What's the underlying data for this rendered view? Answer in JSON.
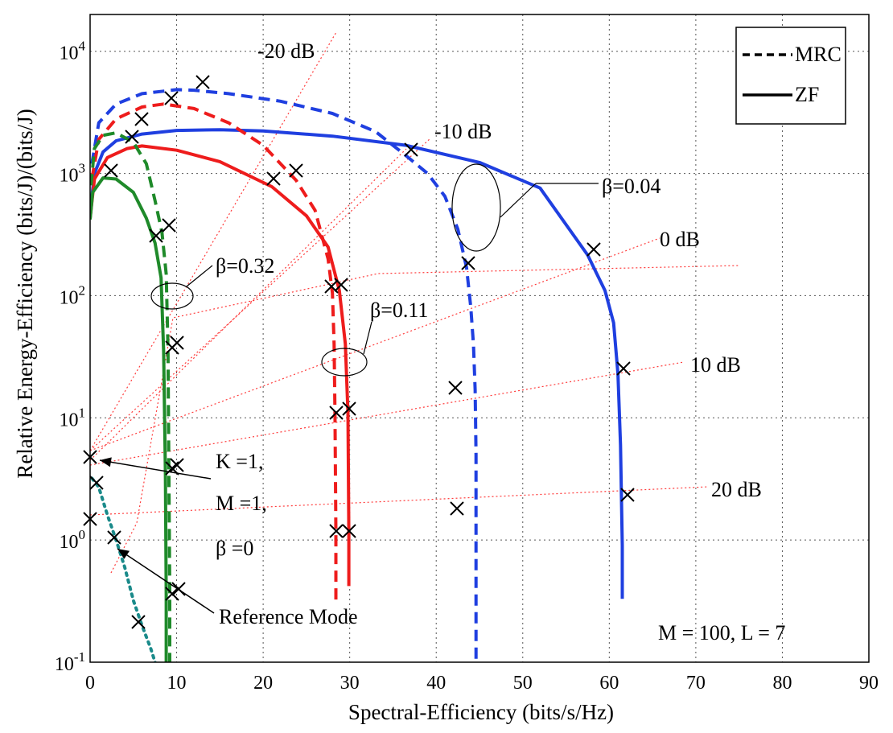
{
  "chart_data": {
    "type": "line",
    "title": "",
    "xlabel": "Spectral-Efficiency (bits/s/Hz)",
    "ylabel": "Relative Energy-Efficiency (bits/J)/(bits/J)",
    "xlim": [
      0,
      90
    ],
    "ylim": [
      0.1,
      20000
    ],
    "yscale": "log",
    "grid": true,
    "x_ticks": [
      "0",
      "10",
      "20",
      "30",
      "40",
      "50",
      "60",
      "70",
      "80",
      "90"
    ],
    "y_ticks": [
      {
        "base": "10",
        "exp": "-1",
        "value": 0.1
      },
      {
        "base": "10",
        "exp": "0",
        "value": 1
      },
      {
        "base": "10",
        "exp": "1",
        "value": 10
      },
      {
        "base": "10",
        "exp": "2",
        "value": 100
      },
      {
        "base": "10",
        "exp": "3",
        "value": 1000
      },
      {
        "base": "10",
        "exp": "4",
        "value": 10000
      }
    ],
    "legend": {
      "placement": "top-right",
      "entries": [
        {
          "label": "MRC",
          "style": "dashed"
        },
        {
          "label": "ZF",
          "style": "solid"
        }
      ]
    },
    "colors": {
      "blue": "#1f3fe0",
      "red": "#ee1c1c",
      "green": "#1f8a2a",
      "teal": "#1a8a8a",
      "ref_line": "#ff3b3b"
    },
    "series": [
      {
        "group": "β=0.04",
        "style": "dashed",
        "color": "#1f3fe0",
        "points": [
          [
            0.2,
            1200
          ],
          [
            1,
            2600
          ],
          [
            3,
            3700
          ],
          [
            6,
            4500
          ],
          [
            10,
            4850
          ],
          [
            12,
            4800
          ],
          [
            16,
            4500
          ],
          [
            22,
            3900
          ],
          [
            28,
            3100
          ],
          [
            33,
            2200
          ],
          [
            36.5,
            1400
          ],
          [
            39,
            1000
          ],
          [
            41,
            650
          ],
          [
            42.5,
            350
          ],
          [
            43.5,
            170
          ],
          [
            44,
            80
          ],
          [
            44.3,
            40
          ],
          [
            44.5,
            17
          ],
          [
            44.6,
            5
          ],
          [
            44.6,
            1.7
          ],
          [
            44.6,
            0.5
          ],
          [
            44.6,
            0.1
          ]
        ]
      },
      {
        "group": "β=0.04",
        "style": "solid",
        "color": "#1f3fe0",
        "points": [
          [
            0,
            480
          ],
          [
            0.5,
            1000
          ],
          [
            1.5,
            1500
          ],
          [
            3,
            1850
          ],
          [
            6,
            2100
          ],
          [
            10,
            2250
          ],
          [
            15,
            2280
          ],
          [
            20,
            2230
          ],
          [
            28,
            2020
          ],
          [
            36.5,
            1700
          ],
          [
            45,
            1230
          ],
          [
            52,
            760
          ],
          [
            57.5,
            215
          ],
          [
            59.5,
            110
          ],
          [
            60.5,
            60
          ],
          [
            61,
            23
          ],
          [
            61.3,
            6
          ],
          [
            61.4,
            2.3
          ],
          [
            61.5,
            0.9
          ],
          [
            61.5,
            0.33
          ]
        ]
      },
      {
        "group": "β=0.11",
        "style": "dashed",
        "color": "#ee1c1c",
        "points": [
          [
            0.2,
            900
          ],
          [
            1,
            1900
          ],
          [
            3,
            2800
          ],
          [
            6,
            3500
          ],
          [
            8.5,
            3700
          ],
          [
            12,
            3400
          ],
          [
            16,
            2600
          ],
          [
            20,
            1700
          ],
          [
            23.8,
            880
          ],
          [
            26,
            500
          ],
          [
            27.5,
            200
          ],
          [
            28,
            105
          ],
          [
            28.2,
            40
          ],
          [
            28.3,
            10.5
          ],
          [
            28.4,
            1.15
          ],
          [
            28.4,
            0.3
          ]
        ]
      },
      {
        "group": "β=0.11",
        "style": "solid",
        "color": "#ee1c1c",
        "points": [
          [
            0,
            430
          ],
          [
            0.5,
            900
          ],
          [
            2,
            1350
          ],
          [
            4.3,
            1600
          ],
          [
            6,
            1680
          ],
          [
            10,
            1550
          ],
          [
            15,
            1250
          ],
          [
            21,
            780
          ],
          [
            25,
            450
          ],
          [
            27.5,
            250
          ],
          [
            28.8,
            110
          ],
          [
            29.5,
            40
          ],
          [
            29.8,
            11
          ],
          [
            29.9,
            1.15
          ],
          [
            29.9,
            0.42
          ]
        ]
      },
      {
        "group": "β=0.32",
        "style": "dashed",
        "color": "#1f8a2a",
        "points": [
          [
            0.1,
            800
          ],
          [
            0.5,
            1600
          ],
          [
            1.5,
            2050
          ],
          [
            3,
            2150
          ],
          [
            5,
            1800
          ],
          [
            6.5,
            1200
          ],
          [
            7.5,
            600
          ],
          [
            8.3,
            330
          ],
          [
            8.8,
            150
          ],
          [
            9,
            37
          ],
          [
            9.1,
            3.7
          ],
          [
            9.2,
            0.38
          ],
          [
            9.2,
            0.08
          ]
        ]
      },
      {
        "group": "β=0.32",
        "style": "solid",
        "color": "#1f8a2a",
        "points": [
          [
            0,
            420
          ],
          [
            0.3,
            700
          ],
          [
            1.5,
            920
          ],
          [
            3,
            900
          ],
          [
            5,
            700
          ],
          [
            6.5,
            430
          ],
          [
            7.5,
            270
          ],
          [
            8.2,
            140
          ],
          [
            8.5,
            35
          ],
          [
            8.7,
            3.5
          ],
          [
            8.8,
            0.35
          ],
          [
            8.8,
            0.08
          ]
        ]
      },
      {
        "group": "Reference Mode",
        "style": "dotted",
        "color": "#1a8a8a",
        "points": [
          [
            0.2,
            3.2
          ],
          [
            1,
            2.7
          ],
          [
            2,
            1.6
          ],
          [
            3,
            1.0
          ],
          [
            4,
            0.6
          ],
          [
            5,
            0.32
          ],
          [
            6,
            0.2
          ],
          [
            7,
            0.13
          ],
          [
            7.5,
            0.1
          ],
          [
            8,
            0.08
          ]
        ]
      }
    ],
    "annotations": [
      {
        "text": "-20 dB"
      },
      {
        "text": "-10 dB"
      },
      {
        "text": "0 dB"
      },
      {
        "text": "10 dB"
      },
      {
        "text": "20 dB"
      },
      {
        "text": "β=0.04"
      },
      {
        "text": "β=0.11"
      },
      {
        "text": "β=0.32"
      },
      {
        "text": "Reference Mode"
      },
      {
        "text": "K =1,"
      },
      {
        "text": "M =1,"
      },
      {
        "text": "β =0"
      },
      {
        "text": "M = 100, L = 7"
      }
    ]
  }
}
